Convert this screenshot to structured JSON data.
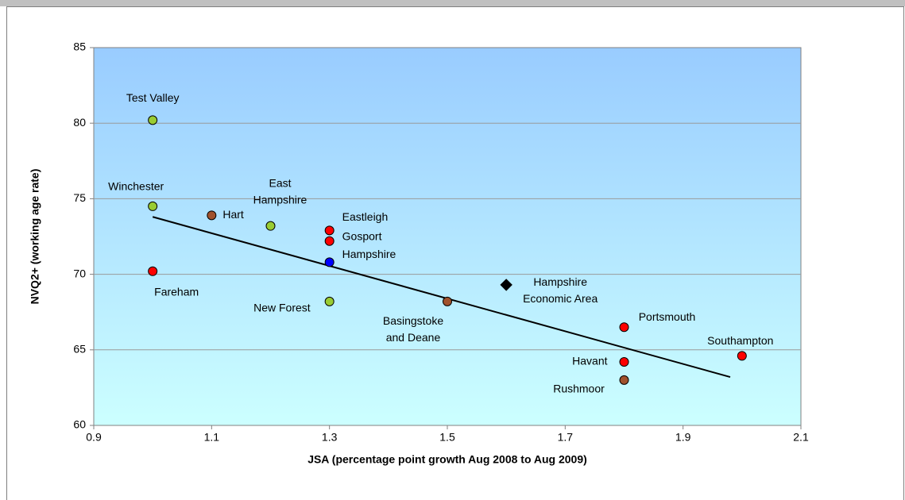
{
  "chart_data": {
    "type": "scatter",
    "xlabel": "JSA (percentage point growth Aug 2008 to Aug 2009)",
    "ylabel": "NVQ2+ (working age rate)",
    "xlim": [
      0.9,
      2.1
    ],
    "xticks": [
      0.9,
      1.1,
      1.3,
      1.5,
      1.7,
      1.9,
      2.1
    ],
    "ylim": [
      60,
      85
    ],
    "yticks": [
      60,
      65,
      70,
      75,
      80,
      85
    ],
    "grid": true,
    "series": [
      {
        "name": "Test Valley",
        "color": "#99cc33",
        "marker": "circle",
        "x": [
          1.0
        ],
        "values": [
          80.2
        ]
      },
      {
        "name": "Winchester",
        "color": "#99cc33",
        "marker": "circle",
        "x": [
          1.0
        ],
        "values": [
          74.5
        ]
      },
      {
        "name": "Fareham",
        "color": "#ff0000",
        "marker": "circle",
        "x": [
          1.0
        ],
        "values": [
          70.2
        ]
      },
      {
        "name": "Hart",
        "color": "#a0522d",
        "marker": "circle",
        "x": [
          1.1
        ],
        "values": [
          73.9
        ]
      },
      {
        "name": "East Hampshire",
        "color": "#99cc33",
        "marker": "circle",
        "x": [
          1.2
        ],
        "values": [
          73.2
        ]
      },
      {
        "name": "Eastleigh",
        "color": "#ff0000",
        "marker": "circle",
        "x": [
          1.3
        ],
        "values": [
          72.9
        ]
      },
      {
        "name": "Gosport",
        "color": "#ff0000",
        "marker": "circle",
        "x": [
          1.3
        ],
        "values": [
          72.2
        ]
      },
      {
        "name": "Hampshire",
        "color": "#0000ff",
        "marker": "circle",
        "x": [
          1.3
        ],
        "values": [
          70.8
        ]
      },
      {
        "name": "New Forest",
        "color": "#99cc33",
        "marker": "circle",
        "x": [
          1.3
        ],
        "values": [
          68.2
        ]
      },
      {
        "name": "Basingstoke and Deane",
        "color": "#a0522d",
        "marker": "circle",
        "x": [
          1.5
        ],
        "values": [
          68.2
        ]
      },
      {
        "name": "Hampshire Economic Area",
        "color": "#000000",
        "marker": "diamond",
        "x": [
          1.6
        ],
        "values": [
          69.3
        ]
      },
      {
        "name": "Portsmouth",
        "color": "#ff0000",
        "marker": "circle",
        "x": [
          1.8
        ],
        "values": [
          66.5
        ]
      },
      {
        "name": "Havant",
        "color": "#ff0000",
        "marker": "circle",
        "x": [
          1.8
        ],
        "values": [
          64.2
        ]
      },
      {
        "name": "Rushmoor",
        "color": "#a0522d",
        "marker": "circle",
        "x": [
          1.8
        ],
        "values": [
          63.0
        ]
      },
      {
        "name": "Southampton",
        "color": "#ff0000",
        "marker": "circle",
        "x": [
          2.0
        ],
        "values": [
          64.6
        ]
      }
    ],
    "trendline": {
      "color": "#000000",
      "x": [
        1.0,
        1.98
      ],
      "values": [
        73.8,
        63.2
      ]
    }
  }
}
